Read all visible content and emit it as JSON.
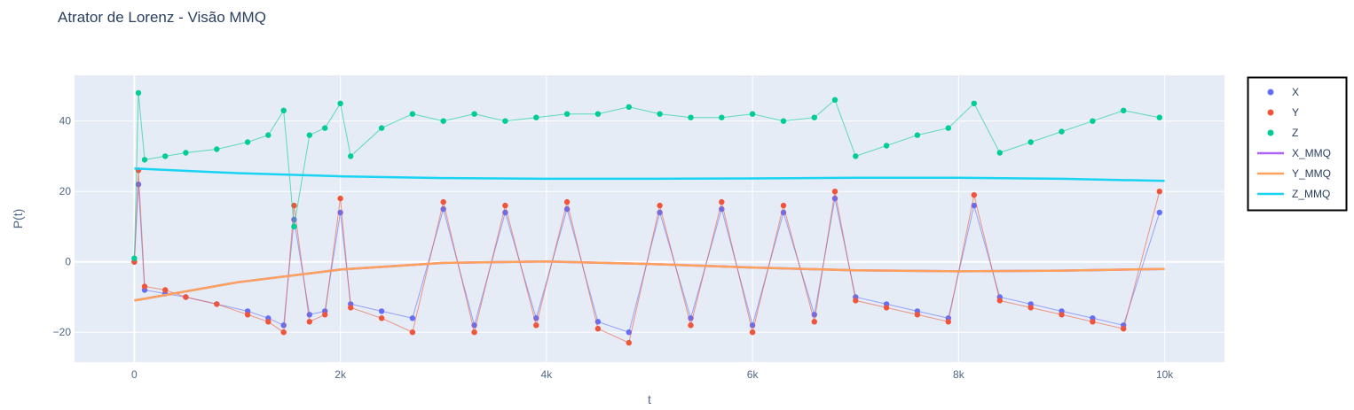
{
  "chart_data": {
    "type": "scatter",
    "title": "Atrator de Lorenz - Visão MMQ",
    "xlabel": "t",
    "ylabel": "P(t)",
    "xlim": [
      -580,
      10580
    ],
    "ylim": [
      -28.5,
      53
    ],
    "x_ticks": [
      0,
      2000,
      4000,
      6000,
      8000,
      10000
    ],
    "x_tick_labels": [
      "0",
      "2k",
      "4k",
      "6k",
      "8k",
      "10k"
    ],
    "y_ticks": [
      -20,
      0,
      20,
      40
    ],
    "y_tick_labels": [
      "−20",
      "0",
      "20",
      "40"
    ],
    "grid": true,
    "legend_position": "right",
    "plot_bgcolor": "#e5ecf6",
    "series": [
      {
        "name": "X",
        "mode": "markers",
        "color": "#636efa",
        "x": [
          0,
          40,
          100,
          300,
          500,
          800,
          1100,
          1300,
          1450,
          1550,
          1700,
          1850,
          2000,
          2100,
          2400,
          2700,
          3000,
          3300,
          3600,
          3900,
          4200,
          4500,
          4800,
          5100,
          5400,
          5700,
          6000,
          6300,
          6600,
          6800,
          7000,
          7300,
          7600,
          7900,
          8150,
          8400,
          8700,
          9000,
          9300,
          9600,
          9950
        ],
        "y": [
          0,
          22,
          -8,
          -9,
          -10,
          -12,
          -14,
          -16,
          -18,
          12,
          -15,
          -14,
          14,
          -12,
          -14,
          -16,
          15,
          -18,
          14,
          -16,
          15,
          -17,
          -20,
          14,
          -16,
          15,
          -18,
          14,
          -15,
          18,
          -10,
          -12,
          -14,
          -16,
          16,
          -10,
          -12,
          -14,
          -16,
          -18,
          14
        ]
      },
      {
        "name": "Y",
        "mode": "markers",
        "color": "#ef553b",
        "x": [
          0,
          40,
          100,
          300,
          500,
          800,
          1100,
          1300,
          1450,
          1550,
          1700,
          1850,
          2000,
          2100,
          2400,
          2700,
          3000,
          3300,
          3600,
          3900,
          4200,
          4500,
          4800,
          5100,
          5400,
          5700,
          6000,
          6300,
          6600,
          6800,
          7000,
          7300,
          7600,
          7900,
          8150,
          8400,
          8700,
          9000,
          9300,
          9600,
          9950
        ],
        "y": [
          0,
          26,
          -7,
          -8,
          -10,
          -12,
          -15,
          -17,
          -20,
          16,
          -17,
          -15,
          18,
          -13,
          -16,
          -20,
          17,
          -20,
          16,
          -18,
          17,
          -19,
          -23,
          16,
          -18,
          17,
          -20,
          16,
          -17,
          20,
          -11,
          -13,
          -15,
          -17,
          19,
          -11,
          -13,
          -15,
          -17,
          -19,
          20
        ]
      },
      {
        "name": "Z",
        "mode": "markers",
        "color": "#00cc96",
        "x": [
          0,
          40,
          100,
          300,
          500,
          800,
          1100,
          1300,
          1450,
          1550,
          1700,
          1850,
          2000,
          2100,
          2400,
          2700,
          3000,
          3300,
          3600,
          3900,
          4200,
          4500,
          4800,
          5100,
          5400,
          5700,
          6000,
          6300,
          6600,
          6800,
          7000,
          7300,
          7600,
          7900,
          8150,
          8400,
          8700,
          9000,
          9300,
          9600,
          9950
        ],
        "y": [
          1,
          48,
          29,
          30,
          31,
          32,
          34,
          36,
          43,
          10,
          36,
          38,
          45,
          30,
          38,
          42,
          40,
          42,
          40,
          41,
          42,
          42,
          44,
          42,
          41,
          41,
          42,
          40,
          41,
          46,
          30,
          33,
          36,
          38,
          45,
          31,
          34,
          37,
          40,
          43,
          41
        ]
      },
      {
        "name": "X_MMQ",
        "mode": "lines",
        "color": "#ab63fa",
        "x": [
          0,
          1000,
          2000,
          3000,
          4000,
          5000,
          6000,
          7000,
          8000,
          9000,
          10000
        ],
        "y": [
          -11,
          -5.8,
          -2.2,
          -0.3,
          0.1,
          -0.6,
          -1.6,
          -2.4,
          -2.7,
          -2.5,
          -2
        ]
      },
      {
        "name": "Y_MMQ",
        "mode": "lines",
        "color": "#ffa15a",
        "x": [
          0,
          1000,
          2000,
          3000,
          4000,
          5000,
          6000,
          7000,
          8000,
          9000,
          10000
        ],
        "y": [
          -11,
          -5.8,
          -2.2,
          -0.3,
          0.1,
          -0.6,
          -1.6,
          -2.4,
          -2.7,
          -2.5,
          -2
        ]
      },
      {
        "name": "Z_MMQ",
        "mode": "lines",
        "color": "#19d3f3",
        "x": [
          0,
          1000,
          2000,
          3000,
          4000,
          5000,
          6000,
          7000,
          8000,
          9000,
          10000
        ],
        "y": [
          26.5,
          25.2,
          24.3,
          23.8,
          23.6,
          23.6,
          23.7,
          23.9,
          23.9,
          23.6,
          23
        ]
      }
    ]
  }
}
